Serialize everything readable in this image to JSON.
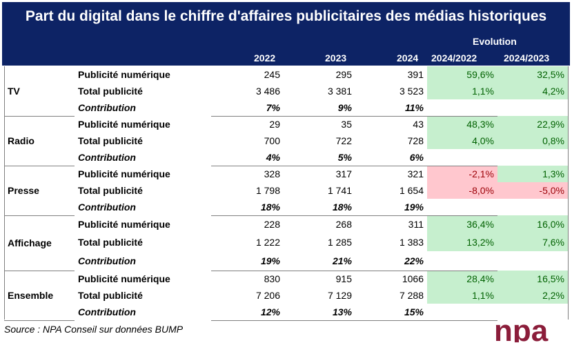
{
  "title": "Part du digital dans le chiffre d'affaires publicitaires des médias historiques",
  "header": {
    "evolution": "Evolution",
    "years": [
      "2022",
      "2023",
      "2024"
    ],
    "evo_cols": [
      "2024/2022",
      "2024/2023"
    ]
  },
  "groups": [
    {
      "name": "TV",
      "rows": [
        {
          "label": "Publicité numérique",
          "v2022": "245",
          "v2023": "295",
          "v2024": "391",
          "e1": "59,6%",
          "e2": "32,5%"
        },
        {
          "label": "Total publicité",
          "v2022": "3 486",
          "v2023": "3 381",
          "v2024": "3 523",
          "e1": "1,1%",
          "e2": "4,2%"
        },
        {
          "label": "Contribution",
          "v2022": "7%",
          "v2023": "9%",
          "v2024": "11%",
          "e1": "",
          "e2": ""
        }
      ]
    },
    {
      "name": "Radio",
      "rows": [
        {
          "label": "Publicité numérique",
          "v2022": "29",
          "v2023": "35",
          "v2024": "43",
          "e1": "48,3%",
          "e2": "22,9%"
        },
        {
          "label": "Total publicité",
          "v2022": "700",
          "v2023": "722",
          "v2024": "728",
          "e1": "4,0%",
          "e2": "0,8%"
        },
        {
          "label": "Contribution",
          "v2022": "4%",
          "v2023": "5%",
          "v2024": "6%",
          "e1": "",
          "e2": ""
        }
      ]
    },
    {
      "name": "Presse",
      "rows": [
        {
          "label": "Publicité numérique",
          "v2022": "328",
          "v2023": "317",
          "v2024": "321",
          "e1": "-2,1%",
          "e2": "1,3%"
        },
        {
          "label": "Total publicité",
          "v2022": "1 798",
          "v2023": "1 741",
          "v2024": "1 654",
          "e1": "-8,0%",
          "e2": "-5,0%"
        },
        {
          "label": "Contribution",
          "v2022": "18%",
          "v2023": "18%",
          "v2024": "19%",
          "e1": "",
          "e2": ""
        }
      ]
    },
    {
      "name": "Affichage",
      "rows": [
        {
          "label": "Publicité numérique",
          "v2022": "228",
          "v2023": "268",
          "v2024": "311",
          "e1": "36,4%",
          "e2": "16,0%"
        },
        {
          "label": "Total publicité",
          "v2022": "1 222",
          "v2023": "1 285",
          "v2024": "1 383",
          "e1": "13,2%",
          "e2": "7,6%"
        },
        {
          "label": "Contribution",
          "v2022": "19%",
          "v2023": "21%",
          "v2024": "22%",
          "e1": "",
          "e2": ""
        }
      ]
    },
    {
      "name": "Ensemble",
      "rows": [
        {
          "label": "Publicité numérique",
          "v2022": "830",
          "v2023": "915",
          "v2024": "1066",
          "e1": "28,4%",
          "e2": "16,5%"
        },
        {
          "label": "Total publicité",
          "v2022": "7 206",
          "v2023": "7 129",
          "v2024": "7 288",
          "e1": "1,1%",
          "e2": "2,2%"
        },
        {
          "label": "Contribution",
          "v2022": "12%",
          "v2023": "13%",
          "v2024": "15%",
          "e1": "",
          "e2": ""
        }
      ]
    }
  ],
  "source": "Source : NPA Conseil sur données BUMP",
  "logo_text": "npa",
  "colors": {
    "header_bg": "#0d2365",
    "positive_bg": "#c6efce",
    "positive_text": "#006100",
    "negative_bg": "#ffc7ce",
    "negative_text": "#9c0006",
    "logo": "#8b1d3a"
  }
}
